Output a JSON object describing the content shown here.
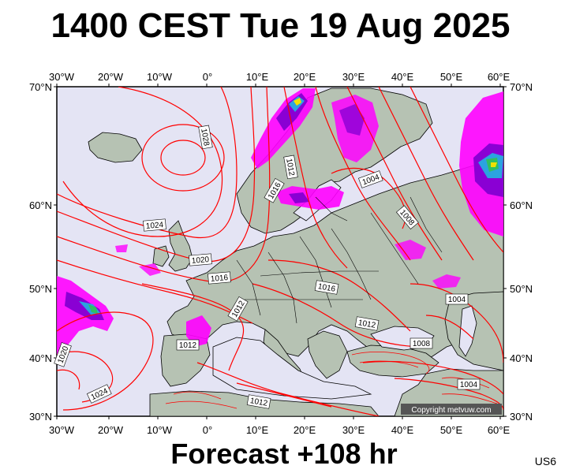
{
  "title": "1400 CEST Tue 19 Aug 2025",
  "footer": "Forecast +108 hr",
  "code": "US6",
  "copyright": "Copyright metvuw.com",
  "lon_labels": [
    "30°W",
    "20°W",
    "10°W",
    "0°",
    "10°E",
    "20°E",
    "30°E",
    "40°E",
    "50°E",
    "60°E"
  ],
  "lat_labels": [
    "70°N",
    "60°N",
    "50°N",
    "40°N",
    "30°N"
  ],
  "isobar_labels": [
    "1028",
    "1024",
    "1020",
    "1016",
    "1012",
    "1016",
    "1012",
    "1004",
    "1008",
    "1016",
    "1012",
    "1004",
    "1008",
    "1020",
    "1012",
    "1024",
    "1012",
    "1004"
  ],
  "colors": {
    "isobar": "#ff0000",
    "ocean": "#e4e4f4",
    "land": "#b6c2b3",
    "rain_magenta": "#ff00ff",
    "rain_purple": "#8a00d4"
  }
}
